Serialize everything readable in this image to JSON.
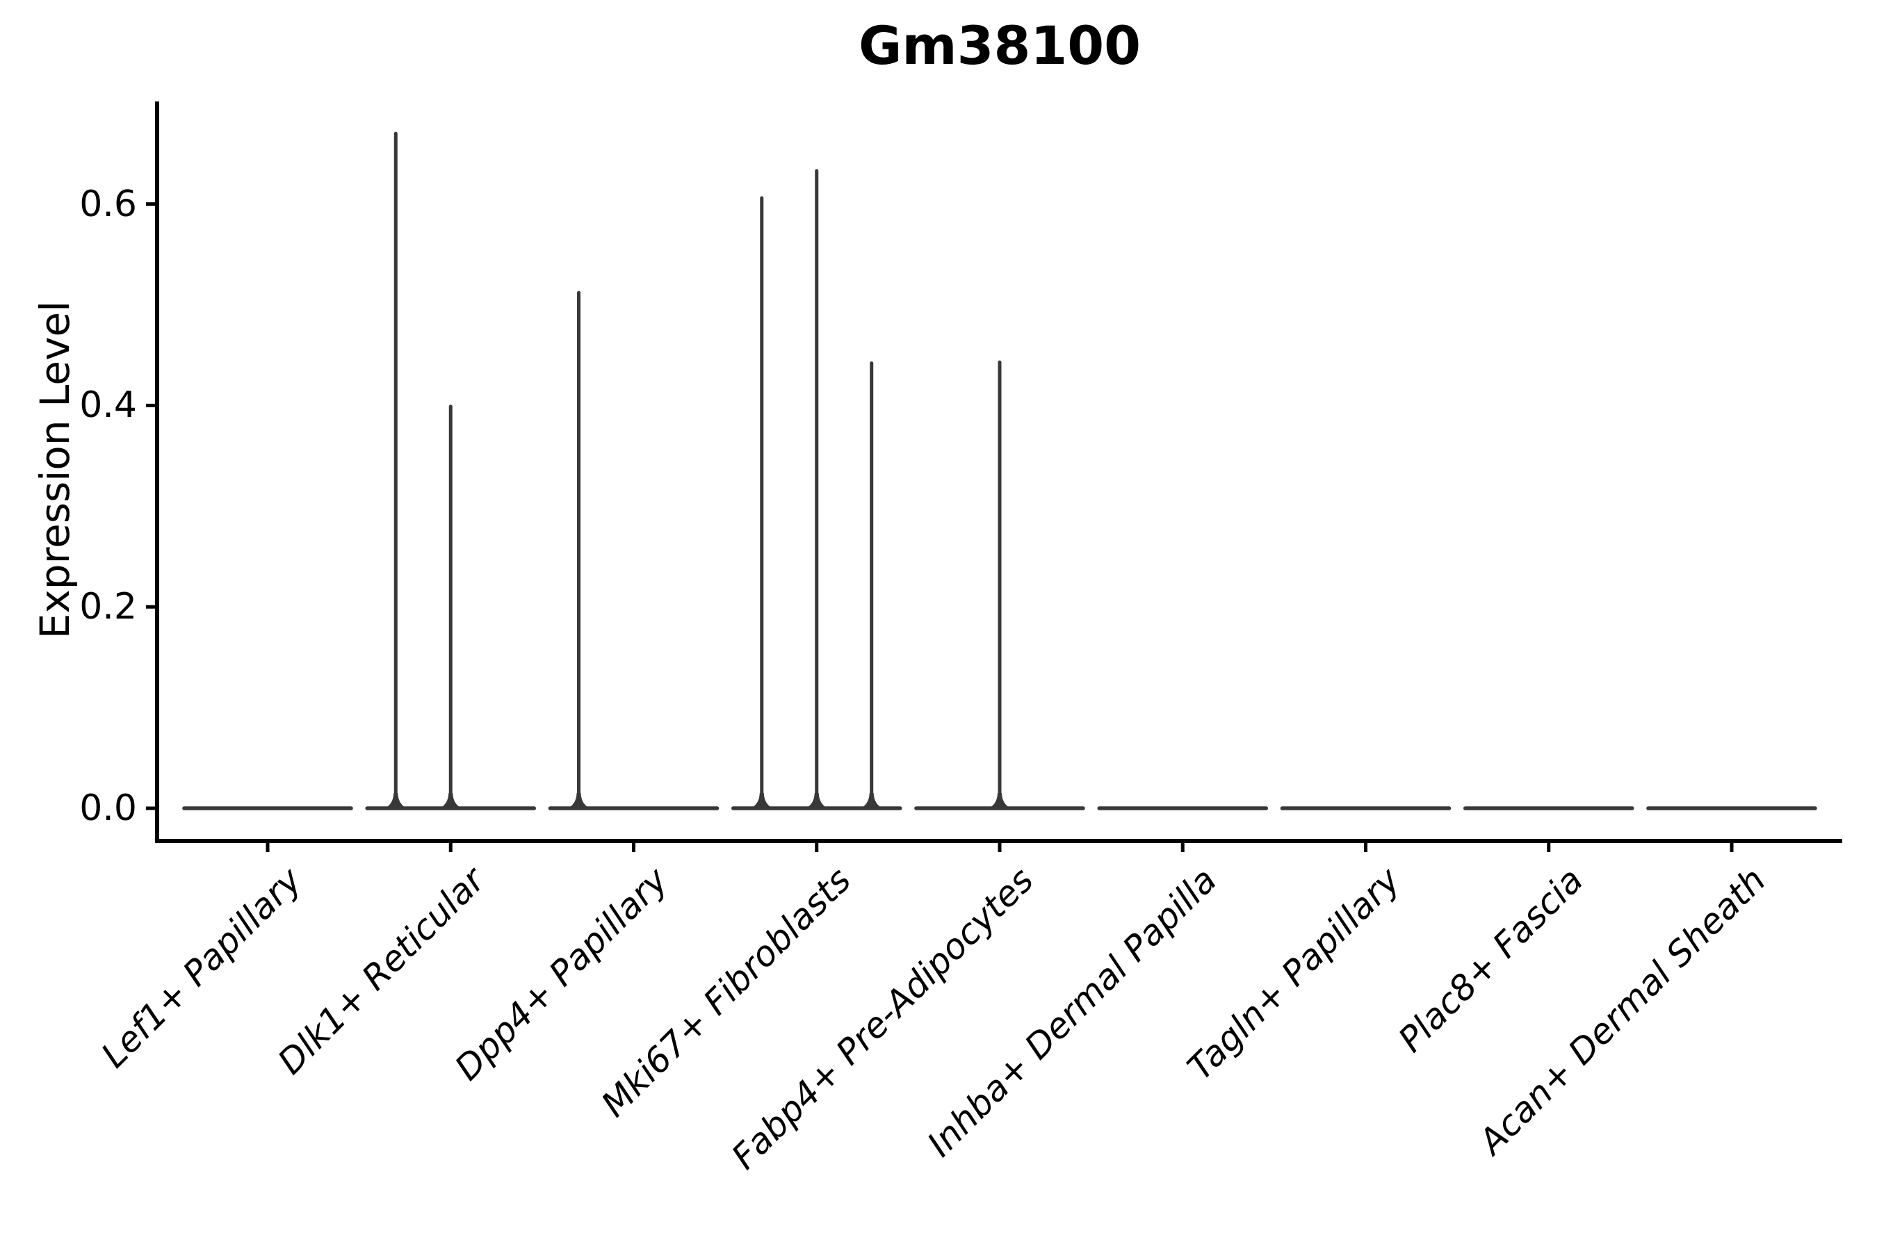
{
  "figure": {
    "title": "Gm38100",
    "background_color": "#ffffff",
    "text_color": "#000000"
  },
  "axes": {
    "ylabel": "Expression Level",
    "ytick_labels": [
      "0.0",
      "0.2",
      "0.4",
      "0.6"
    ]
  },
  "chart_data": {
    "type": "violin",
    "title": "Gm38100",
    "xlabel": "",
    "ylabel": "Expression Level",
    "categories": [
      "Lef1+ Papillary",
      "Dlk1+ Reticular",
      "Dpp4+ Papillary",
      "Mki67+ Fibroblasts",
      "Fabp4+ Pre-Adipocytes",
      "Inhba+ Dermal Papilla",
      "Tagln+ Papillary",
      "Plac8+ Fascia",
      "Acan+ Dermal Sheath"
    ],
    "yticks": [
      0.0,
      0.2,
      0.4,
      0.6
    ],
    "ylim": [
      -0.033,
      0.702
    ],
    "grid": false,
    "legend": false,
    "baseline_value": 0.0,
    "violin_halfwidth": 0.456,
    "violin_color": "#383838",
    "axis_color": "#000000",
    "violins": [
      {
        "category": "Lef1+ Papillary",
        "baseline": 0.0,
        "spikes": []
      },
      {
        "category": "Dlk1+ Reticular",
        "baseline": 0.0,
        "spikes": [
          {
            "offset": -0.3,
            "value": 0.67
          },
          {
            "offset": 0.0,
            "value": 0.399
          }
        ]
      },
      {
        "category": "Dpp4+ Papillary",
        "baseline": 0.0,
        "spikes": [
          {
            "offset": -0.3,
            "value": 0.512
          }
        ]
      },
      {
        "category": "Mki67+ Fibroblasts",
        "baseline": 0.0,
        "spikes": [
          {
            "offset": -0.3,
            "value": 0.606
          },
          {
            "offset": 0.0,
            "value": 0.633
          },
          {
            "offset": 0.3,
            "value": 0.442
          }
        ]
      },
      {
        "category": "Fabp4+ Pre-Adipocytes",
        "baseline": 0.0,
        "spikes": [
          {
            "offset": 0.0,
            "value": 0.443
          }
        ]
      },
      {
        "category": "Inhba+ Dermal Papilla",
        "baseline": 0.0,
        "spikes": []
      },
      {
        "category": "Tagln+ Papillary",
        "baseline": 0.0,
        "spikes": []
      },
      {
        "category": "Plac8+ Fascia",
        "baseline": 0.0,
        "spikes": []
      },
      {
        "category": "Acan+ Dermal Sheath",
        "baseline": 0.0,
        "spikes": []
      }
    ]
  }
}
